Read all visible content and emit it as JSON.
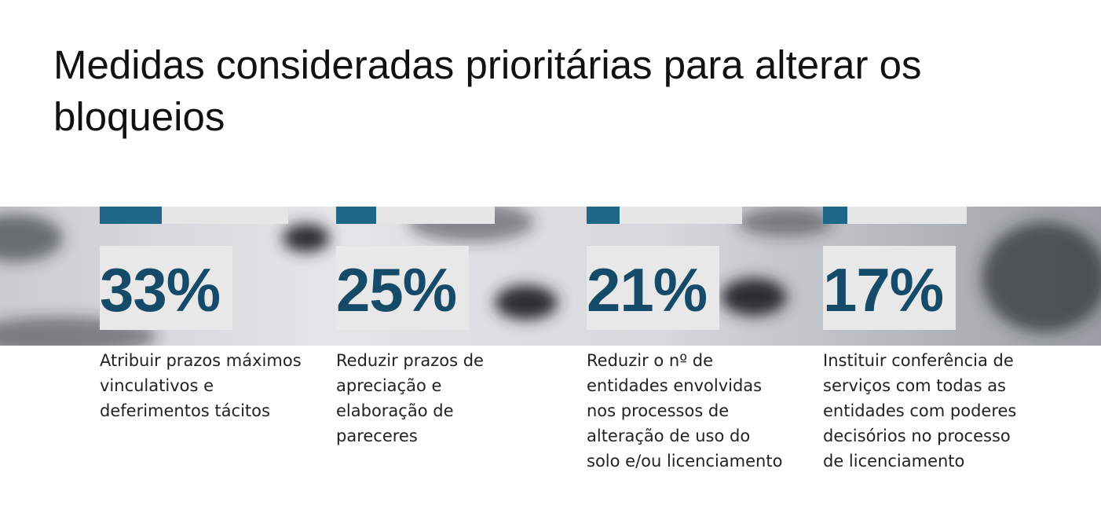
{
  "title": "Medidas consideradas prioritárias para alterar os bloqueios",
  "items": [
    {
      "value": 33,
      "label": "33%",
      "text": "Atribuir prazos máximos vinculativos e deferimentos tácitos"
    },
    {
      "value": 25,
      "label": "25%",
      "text": "Reduzir prazos de apreciação e elaboração de pareceres"
    },
    {
      "value": 21,
      "label": "21%",
      "text": "Reduzir o nº de entidades envolvidas nos processos de alteração de uso do solo e/ou licenciamento"
    },
    {
      "value": 17,
      "label": "17%",
      "text": "Instituir conferência de serviços com todas as entidades com poderes decisórios no processo de licenciamento"
    }
  ]
}
